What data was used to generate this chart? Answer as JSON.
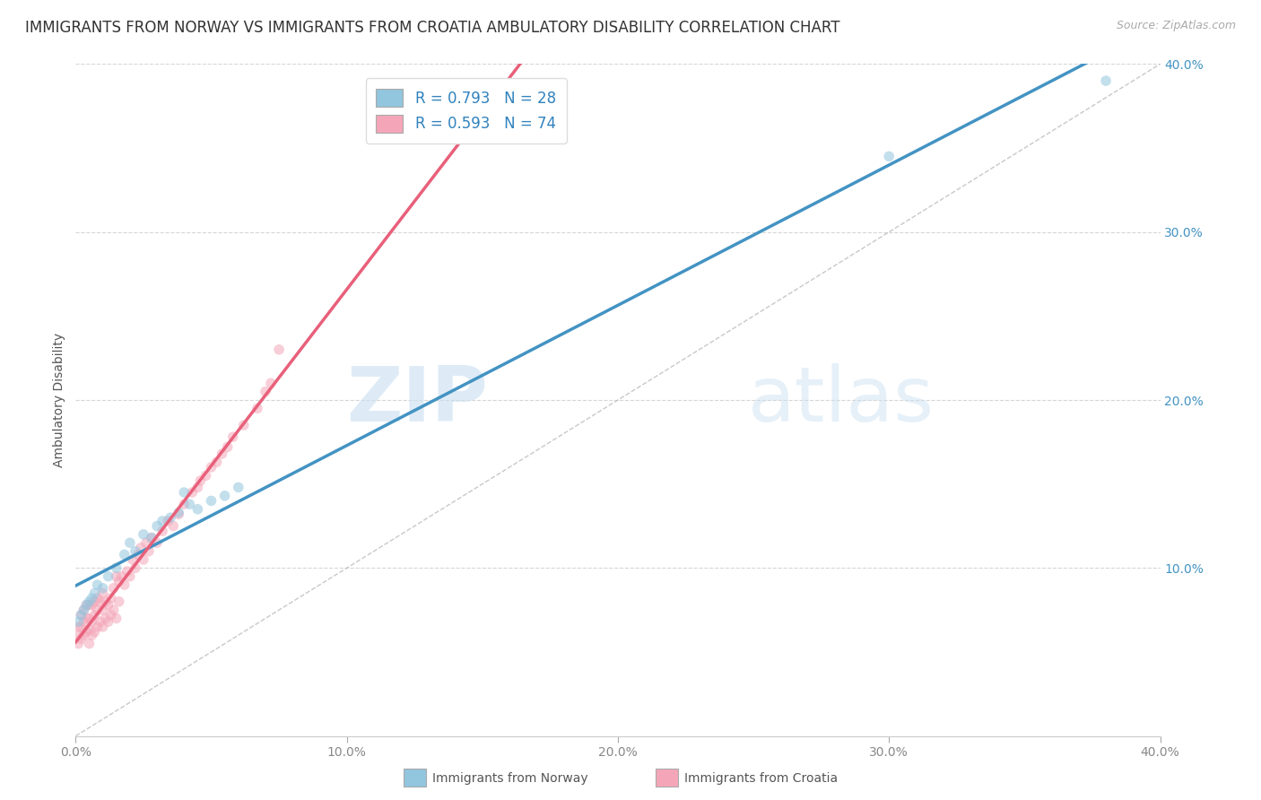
{
  "title": "IMMIGRANTS FROM NORWAY VS IMMIGRANTS FROM CROATIA AMBULATORY DISABILITY CORRELATION CHART",
  "source": "Source: ZipAtlas.com",
  "ylabel": "Ambulatory Disability",
  "legend_norway": "Immigrants from Norway",
  "legend_croatia": "Immigrants from Croatia",
  "norway_R": 0.793,
  "norway_N": 28,
  "croatia_R": 0.593,
  "croatia_N": 74,
  "norway_color": "#92c5de",
  "croatia_color": "#f4a6b8",
  "norway_line_color": "#4393c3",
  "croatia_line_color": "#e8607a",
  "xlim": [
    0.0,
    0.4
  ],
  "ylim": [
    0.0,
    0.4
  ],
  "xticks": [
    0.0,
    0.1,
    0.2,
    0.3,
    0.4
  ],
  "yticks": [
    0.1,
    0.2,
    0.3,
    0.4
  ],
  "norway_x": [
    0.001,
    0.002,
    0.003,
    0.004,
    0.005,
    0.006,
    0.007,
    0.008,
    0.01,
    0.012,
    0.015,
    0.018,
    0.02,
    0.025,
    0.03,
    0.035,
    0.04,
    0.045,
    0.05,
    0.06,
    0.022,
    0.028,
    0.032,
    0.038,
    0.042,
    0.055,
    0.3,
    0.38
  ],
  "norway_y": [
    0.068,
    0.072,
    0.075,
    0.078,
    0.08,
    0.082,
    0.085,
    0.09,
    0.088,
    0.095,
    0.1,
    0.108,
    0.115,
    0.12,
    0.125,
    0.13,
    0.145,
    0.135,
    0.14,
    0.148,
    0.11,
    0.118,
    0.128,
    0.133,
    0.138,
    0.143,
    0.345,
    0.39
  ],
  "croatia_x": [
    0.001,
    0.001,
    0.001,
    0.002,
    0.002,
    0.002,
    0.003,
    0.003,
    0.003,
    0.004,
    0.004,
    0.004,
    0.005,
    0.005,
    0.005,
    0.005,
    0.006,
    0.006,
    0.006,
    0.007,
    0.007,
    0.007,
    0.008,
    0.008,
    0.008,
    0.009,
    0.009,
    0.01,
    0.01,
    0.01,
    0.011,
    0.011,
    0.012,
    0.012,
    0.013,
    0.013,
    0.014,
    0.014,
    0.015,
    0.015,
    0.016,
    0.016,
    0.017,
    0.018,
    0.019,
    0.02,
    0.021,
    0.022,
    0.023,
    0.024,
    0.025,
    0.026,
    0.027,
    0.028,
    0.03,
    0.032,
    0.034,
    0.036,
    0.038,
    0.04,
    0.043,
    0.046,
    0.05,
    0.054,
    0.058,
    0.062,
    0.067,
    0.07,
    0.072,
    0.075,
    0.045,
    0.048,
    0.052,
    0.056
  ],
  "croatia_y": [
    0.055,
    0.06,
    0.065,
    0.058,
    0.065,
    0.072,
    0.06,
    0.068,
    0.075,
    0.062,
    0.07,
    0.078,
    0.055,
    0.063,
    0.07,
    0.078,
    0.06,
    0.068,
    0.078,
    0.062,
    0.072,
    0.08,
    0.065,
    0.075,
    0.082,
    0.068,
    0.08,
    0.065,
    0.075,
    0.085,
    0.07,
    0.08,
    0.068,
    0.078,
    0.072,
    0.082,
    0.075,
    0.088,
    0.07,
    0.095,
    0.08,
    0.092,
    0.095,
    0.09,
    0.098,
    0.095,
    0.105,
    0.1,
    0.108,
    0.112,
    0.105,
    0.115,
    0.11,
    0.118,
    0.115,
    0.122,
    0.128,
    0.125,
    0.132,
    0.138,
    0.145,
    0.152,
    0.16,
    0.168,
    0.178,
    0.185,
    0.195,
    0.205,
    0.21,
    0.23,
    0.148,
    0.155,
    0.163,
    0.172
  ],
  "watermark_zip": "ZIP",
  "watermark_atlas": "atlas",
  "background_color": "#ffffff",
  "grid_color": "#cccccc",
  "title_fontsize": 12,
  "axis_label_fontsize": 10,
  "tick_fontsize": 10,
  "dot_size": 70,
  "dot_alpha": 0.55
}
